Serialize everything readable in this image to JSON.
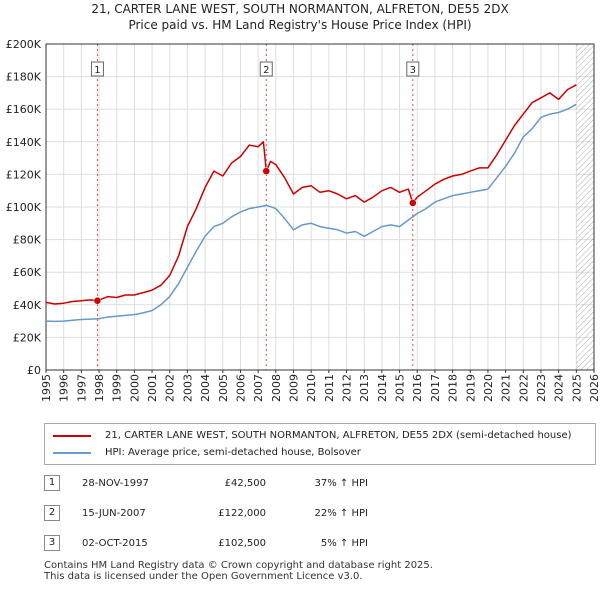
{
  "colors": {
    "property": "#cc0000",
    "hpi": "#6699cc",
    "grid": "#dddddd",
    "axis": "#333333",
    "marker_line": "#cc0000",
    "future_hatch": "#999999"
  },
  "chart_data": {
    "type": "line",
    "title": "21, CARTER LANE WEST, SOUTH NORMANTON, ALFRETON, DE55 2DX",
    "subtitle": "Price paid vs. HM Land Registry's House Price Index (HPI)",
    "xlabel": "",
    "ylabel": "",
    "xlim": [
      1995,
      2026
    ],
    "ylim": [
      0,
      200000
    ],
    "yticks": [
      0,
      20000,
      40000,
      60000,
      80000,
      100000,
      120000,
      140000,
      160000,
      180000,
      200000
    ],
    "ytick_labels": [
      "£0",
      "£20K",
      "£40K",
      "£60K",
      "£80K",
      "£100K",
      "£120K",
      "£140K",
      "£160K",
      "£180K",
      "£200K"
    ],
    "xticks": [
      1995,
      1996,
      1997,
      1998,
      1999,
      2000,
      2001,
      2002,
      2003,
      2004,
      2005,
      2006,
      2007,
      2008,
      2009,
      2010,
      2011,
      2012,
      2013,
      2014,
      2015,
      2016,
      2017,
      2018,
      2019,
      2020,
      2021,
      2022,
      2023,
      2024,
      2025,
      2026
    ],
    "xtick_labels": [
      "1995",
      "1996",
      "1997",
      "1998",
      "1999",
      "2000",
      "2001",
      "2002",
      "2003",
      "2004",
      "2005",
      "2006",
      "2007",
      "2008",
      "2009",
      "2010",
      "2011",
      "2012",
      "2013",
      "2014",
      "2015",
      "2016",
      "2017",
      "2018",
      "2019",
      "2020",
      "2021",
      "2022",
      "2023",
      "2024",
      "2025",
      "2026"
    ],
    "grid": true,
    "future_hatched_from": 2025.0,
    "series": [
      {
        "name": "21, CARTER LANE WEST, SOUTH NORMANTON, ALFRETON, DE55 2DX (semi-detached house)",
        "x": [
          1995.0,
          1995.5,
          1996.0,
          1996.5,
          1997.0,
          1997.5,
          1997.91,
          1998.5,
          1999.0,
          1999.5,
          2000.0,
          2000.5,
          2001.0,
          2001.5,
          2002.0,
          2002.5,
          2003.0,
          2003.5,
          2004.0,
          2004.5,
          2005.0,
          2005.5,
          2006.0,
          2006.5,
          2007.0,
          2007.3,
          2007.46,
          2007.7,
          2008.0,
          2008.5,
          2009.0,
          2009.5,
          2010.0,
          2010.5,
          2011.0,
          2011.5,
          2012.0,
          2012.5,
          2013.0,
          2013.5,
          2014.0,
          2014.5,
          2015.0,
          2015.5,
          2015.75,
          2016.0,
          2016.5,
          2017.0,
          2017.5,
          2018.0,
          2018.5,
          2019.0,
          2019.5,
          2020.0,
          2020.5,
          2021.0,
          2021.5,
          2022.0,
          2022.5,
          2023.0,
          2023.5,
          2024.0,
          2024.5,
          2025.0
        ],
        "values": [
          41500,
          40500,
          41000,
          42000,
          42500,
          43000,
          42500,
          45000,
          44500,
          46000,
          46000,
          47500,
          49000,
          52000,
          58000,
          70000,
          88000,
          99000,
          112000,
          122000,
          119000,
          127000,
          131000,
          138000,
          137000,
          140000,
          122000,
          128000,
          126000,
          118000,
          108000,
          112000,
          113000,
          109000,
          110000,
          108000,
          105000,
          107000,
          103000,
          106000,
          110000,
          112000,
          109000,
          111000,
          102500,
          106000,
          110000,
          114000,
          117000,
          119000,
          120000,
          122000,
          124000,
          124000,
          132000,
          141000,
          150000,
          157000,
          164000,
          167000,
          170000,
          166000,
          172000,
          175000
        ]
      },
      {
        "name": "HPI: Average price, semi-detached house, Bolsover",
        "x": [
          1995.0,
          1995.5,
          1996.0,
          1996.5,
          1997.0,
          1997.5,
          1998.0,
          1998.5,
          1999.0,
          1999.5,
          2000.0,
          2000.5,
          2001.0,
          2001.5,
          2002.0,
          2002.5,
          2003.0,
          2003.5,
          2004.0,
          2004.5,
          2005.0,
          2005.5,
          2006.0,
          2006.5,
          2007.0,
          2007.5,
          2008.0,
          2008.5,
          2009.0,
          2009.5,
          2010.0,
          2010.5,
          2011.0,
          2011.5,
          2012.0,
          2012.5,
          2013.0,
          2013.5,
          2014.0,
          2014.5,
          2015.0,
          2015.5,
          2016.0,
          2016.5,
          2017.0,
          2017.5,
          2018.0,
          2018.5,
          2019.0,
          2019.5,
          2020.0,
          2020.5,
          2021.0,
          2021.5,
          2022.0,
          2022.5,
          2023.0,
          2023.5,
          2024.0,
          2024.5,
          2025.0
        ],
        "values": [
          30000,
          29800,
          30000,
          30500,
          31000,
          31200,
          31500,
          32500,
          33000,
          33500,
          34000,
          35000,
          36500,
          40000,
          45000,
          53000,
          63000,
          73000,
          82000,
          88000,
          90000,
          94000,
          97000,
          99000,
          100000,
          101000,
          99000,
          93000,
          86000,
          89000,
          90000,
          88000,
          87000,
          86000,
          84000,
          85000,
          82000,
          85000,
          88000,
          89000,
          88000,
          92000,
          96000,
          99000,
          103000,
          105000,
          107000,
          108000,
          109000,
          110000,
          111000,
          118000,
          125000,
          133000,
          143000,
          148000,
          155000,
          157000,
          158000,
          160000,
          163000
        ]
      }
    ],
    "sales": [
      {
        "label": "1",
        "x": 1997.91,
        "value": 42500
      },
      {
        "label": "2",
        "x": 2007.46,
        "value": 122000
      },
      {
        "label": "3",
        "x": 2015.75,
        "value": 102500
      }
    ]
  },
  "legend": {
    "property_label": "21, CARTER LANE WEST, SOUTH NORMANTON, ALFRETON, DE55 2DX (semi-detached house)",
    "hpi_label": "HPI: Average price, semi-detached house, Bolsover"
  },
  "sales_table": [
    {
      "number": "1",
      "date": "28-NOV-1997",
      "price": "£42,500",
      "hpi": "37% ↑ HPI"
    },
    {
      "number": "2",
      "date": "15-JUN-2007",
      "price": "£122,000",
      "hpi": "22% ↑ HPI"
    },
    {
      "number": "3",
      "date": "02-OCT-2015",
      "price": "£102,500",
      "hpi": "5% ↑ HPI"
    }
  ],
  "footer": {
    "line1": "Contains HM Land Registry data © Crown copyright and database right 2025.",
    "line2": "This data is licensed under the Open Government Licence v3.0."
  }
}
